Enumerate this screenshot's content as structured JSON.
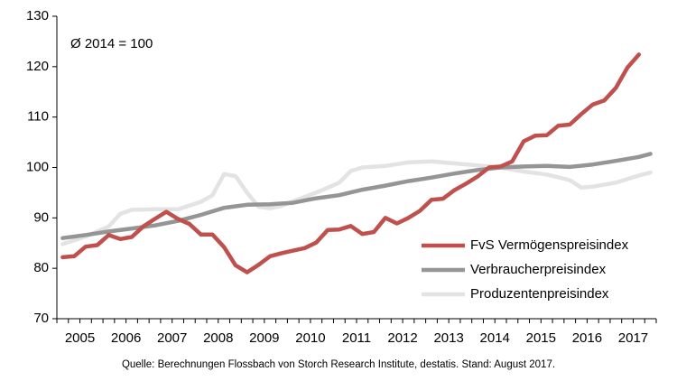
{
  "chart_data": {
    "type": "line",
    "annotation": "Ø 2014 = 100",
    "ylim": [
      70,
      130
    ],
    "yticks": [
      70,
      80,
      90,
      100,
      110,
      120,
      130
    ],
    "xlim": [
      2004.75,
      2017.75
    ],
    "xtick_labels": [
      "2005",
      "2006",
      "2007",
      "2008",
      "2009",
      "2010",
      "2011",
      "2012",
      "2013",
      "2014",
      "2015",
      "2016",
      "2017"
    ],
    "grid": false,
    "legend_position": "bottom-right",
    "series": [
      {
        "name": "FvS Vermögenspreisindex",
        "color": "#c0504d",
        "x": [
          2004.875,
          2005.125,
          2005.375,
          2005.625,
          2005.875,
          2006.125,
          2006.375,
          2006.625,
          2006.875,
          2007.125,
          2007.375,
          2007.625,
          2007.875,
          2008.125,
          2008.375,
          2008.625,
          2008.875,
          2009.125,
          2009.375,
          2009.625,
          2009.875,
          2010.125,
          2010.375,
          2010.625,
          2010.875,
          2011.125,
          2011.375,
          2011.625,
          2011.875,
          2012.125,
          2012.375,
          2012.625,
          2012.875,
          2013.125,
          2013.375,
          2013.625,
          2013.875,
          2014.125,
          2014.375,
          2014.625,
          2014.875,
          2015.125,
          2015.375,
          2015.625,
          2015.875,
          2016.125,
          2016.375,
          2016.625,
          2016.875,
          2017.125,
          2017.375,
          2017.625
        ],
        "y": [
          82.2,
          82.4,
          84.3,
          84.6,
          86.6,
          85.8,
          86.2,
          88.3,
          89.8,
          91.2,
          89.8,
          88.8,
          86.7,
          86.7,
          84.2,
          80.6,
          79.2,
          80.7,
          82.4,
          83.0,
          83.5,
          84.0,
          85.1,
          87.6,
          87.7,
          88.4,
          86.8,
          87.2,
          90.0,
          88.9,
          90.0,
          91.4,
          93.6,
          93.8,
          95.5,
          96.8,
          98.2,
          100.0,
          100.2,
          101.2,
          105.2,
          106.3,
          106.4,
          108.3,
          108.5,
          110.6,
          112.5,
          113.3,
          115.8,
          119.8,
          122.4,
          null
        ],
        "values_count_note": ""
      },
      {
        "name": "Verbraucherpreisindex",
        "color": "#959595",
        "x": [
          2004.875,
          2005.375,
          2005.875,
          2006.375,
          2006.875,
          2007.375,
          2007.875,
          2008.375,
          2008.875,
          2009.375,
          2009.875,
          2010.375,
          2010.875,
          2011.375,
          2011.875,
          2012.375,
          2012.875,
          2013.375,
          2013.875,
          2014.375,
          2014.875,
          2015.375,
          2015.875,
          2016.375,
          2016.875,
          2017.375,
          2017.625
        ],
        "y": [
          86.0,
          86.6,
          87.3,
          87.9,
          88.5,
          89.4,
          90.6,
          92.0,
          92.6,
          92.7,
          93.0,
          93.9,
          94.5,
          95.6,
          96.4,
          97.3,
          98.0,
          98.8,
          99.5,
          100.0,
          100.2,
          100.3,
          100.1,
          100.6,
          101.3,
          102.1,
          102.7
        ]
      },
      {
        "name": "Produzentenpreisindex",
        "color": "#e3e3e3",
        "x": [
          2004.875,
          2005.375,
          2005.875,
          2006.125,
          2006.375,
          2006.875,
          2007.375,
          2007.875,
          2008.125,
          2008.375,
          2008.625,
          2008.875,
          2009.125,
          2009.375,
          2009.625,
          2009.875,
          2010.375,
          2010.875,
          2011.125,
          2011.375,
          2011.875,
          2012.375,
          2012.875,
          2013.375,
          2013.875,
          2014.375,
          2014.875,
          2015.375,
          2015.875,
          2016.125,
          2016.375,
          2016.875,
          2017.375,
          2017.625
        ],
        "y": [
          84.8,
          86.3,
          88.3,
          90.8,
          91.6,
          91.7,
          91.7,
          93.2,
          94.5,
          98.7,
          98.3,
          95.0,
          92.2,
          91.9,
          92.4,
          93.3,
          95.0,
          97.0,
          99.3,
          100.0,
          100.3,
          101.0,
          101.2,
          100.8,
          100.4,
          100.0,
          99.2,
          98.6,
          97.5,
          96.0,
          96.2,
          97.0,
          98.4,
          99.0
        ]
      }
    ]
  },
  "source_text": "Quelle: Berechnungen Flossbach von Storch Research Institute, destatis. Stand: August 2017."
}
